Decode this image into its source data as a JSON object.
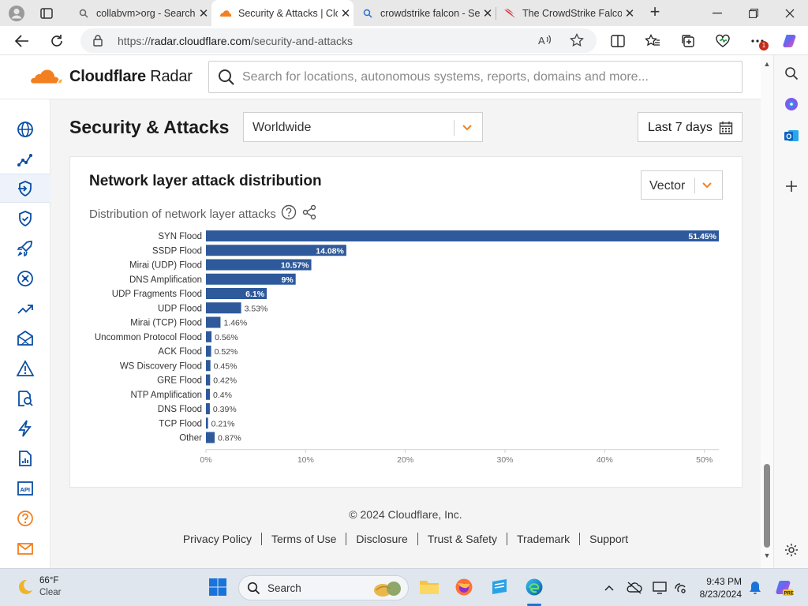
{
  "browser": {
    "tabs": [
      {
        "title": "collabvm>org - Search",
        "active": false
      },
      {
        "title": "Security & Attacks | Cloudflare Radar",
        "active": true
      },
      {
        "title": "crowdstrike falcon - Search",
        "active": false
      },
      {
        "title": "The CrowdStrike Falcon",
        "active": false
      }
    ],
    "url_prefix": "https://",
    "url_host": "radar.cloudflare.com",
    "url_path": "/security-and-attacks",
    "notification_badge": "1"
  },
  "header": {
    "brand_bold": "Cloudflare",
    "brand_light": "Radar",
    "search_placeholder": "Search for locations, autonomous systems, reports, domains and more..."
  },
  "nav": {
    "items": [
      {
        "icon": "globe-icon",
        "active": false
      },
      {
        "icon": "traffic-trend-icon",
        "active": false
      },
      {
        "icon": "attack-target-icon",
        "active": true
      },
      {
        "icon": "shield-check-icon",
        "active": false
      },
      {
        "icon": "rocket-icon",
        "active": false
      },
      {
        "icon": "network-icon",
        "active": false
      },
      {
        "icon": "trending-up-icon",
        "active": false
      },
      {
        "icon": "email-security-icon",
        "active": false
      },
      {
        "icon": "warning-icon",
        "active": false
      },
      {
        "icon": "domain-search-icon",
        "active": false
      },
      {
        "icon": "lightning-icon",
        "active": false
      },
      {
        "icon": "report-icon",
        "active": false
      },
      {
        "icon": "api-icon",
        "active": false
      },
      {
        "icon": "help-icon",
        "active": false
      },
      {
        "icon": "mail-icon",
        "active": false
      }
    ]
  },
  "page": {
    "title": "Security & Attacks",
    "location": "Worldwide",
    "date_range": "Last 7 days"
  },
  "card": {
    "title": "Network layer attack distribution",
    "subtitle": "Distribution of network layer attacks",
    "vector_label": "Vector"
  },
  "chart_data": {
    "type": "bar",
    "orientation": "horizontal",
    "categories": [
      "SYN Flood",
      "SSDP Flood",
      "Mirai (UDP) Flood",
      "DNS Amplification",
      "UDP Fragments Flood",
      "UDP Flood",
      "Mirai (TCP) Flood",
      "Uncommon Protocol Flood",
      "ACK Flood",
      "WS Discovery Flood",
      "GRE Flood",
      "NTP Amplification",
      "DNS Flood",
      "TCP Flood",
      "Other"
    ],
    "values": [
      51.45,
      14.08,
      10.57,
      9,
      6.1,
      3.53,
      1.46,
      0.56,
      0.52,
      0.45,
      0.42,
      0.4,
      0.39,
      0.21,
      0.87
    ],
    "value_labels": [
      "51.45%",
      "14.08%",
      "10.57%",
      "9%",
      "6.1%",
      "3.53%",
      "1.46%",
      "0.56%",
      "0.52%",
      "0.45%",
      "0.42%",
      "0.4%",
      "0.39%",
      "0.21%",
      "0.87%"
    ],
    "xlim": [
      0,
      51.45
    ],
    "xticks": [
      0,
      10,
      20,
      30,
      40,
      50
    ],
    "xtick_labels": [
      "0%",
      "10%",
      "20%",
      "30%",
      "40%",
      "50%"
    ],
    "bar_color": "#2e5a9c",
    "grid": false
  },
  "footer": {
    "copyright": "© 2024 Cloudflare, Inc.",
    "links": [
      "Privacy Policy",
      "Terms of Use",
      "Disclosure",
      "Trust & Safety",
      "Trademark",
      "Support"
    ]
  },
  "taskbar": {
    "temperature": "66°F",
    "condition": "Clear",
    "search_label": "Search",
    "time": "9:43 PM",
    "date": "8/23/2024"
  },
  "colors": {
    "cloudflare_orange": "#f38020",
    "accent_blue": "#2e5a9c",
    "nav_icon": "#0a4ea3"
  }
}
